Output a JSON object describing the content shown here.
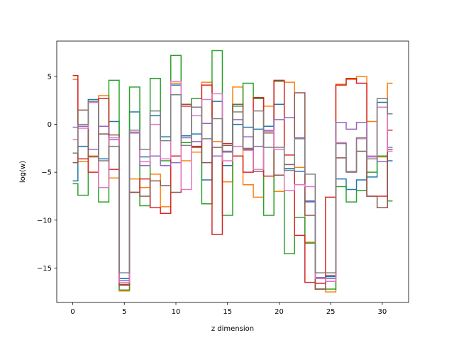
{
  "chart_data": {
    "type": "line",
    "drawstyle": "steps-mid",
    "title": "",
    "xlabel": "z dimension",
    "ylabel": "log(w)",
    "xlim": [
      -1.55,
      32.55
    ],
    "ylim": [
      -18.6,
      8.7
    ],
    "xticks": [
      0,
      5,
      10,
      15,
      20,
      25,
      30
    ],
    "xtick_labels": [
      "0",
      "5",
      "10",
      "15",
      "20",
      "25",
      "30"
    ],
    "yticks": [
      5,
      0,
      -5,
      -10,
      -15
    ],
    "ytick_labels": [
      "5",
      "0",
      "−5",
      "−10",
      "−15"
    ],
    "grid": false,
    "legend": "none",
    "x": [
      0,
      1,
      2,
      3,
      4,
      5,
      6,
      7,
      8,
      9,
      10,
      11,
      12,
      13,
      14,
      15,
      16,
      17,
      18,
      19,
      20,
      21,
      22,
      23,
      24,
      25,
      26,
      27,
      28,
      29,
      30,
      31
    ],
    "series": [
      {
        "color": "#1f77b4",
        "values": [
          -5.9,
          -2.3,
          2.6,
          -3.6,
          0.3,
          -16.1,
          1.3,
          -3.4,
          0.9,
          -1.3,
          4.1,
          -1.2,
          -1.0,
          -5.8,
          2.4,
          -4.3,
          0.0,
          -0.3,
          -0.5,
          -0.2,
          2.1,
          -4.6,
          -4.9,
          -8.0,
          -16.0,
          -15.9,
          -5.7,
          -6.8,
          -5.8,
          -5.5,
          2.3,
          -3.8
        ]
      },
      {
        "color": "#ff7f0e",
        "values": [
          4.7,
          -3.9,
          -3.3,
          3.0,
          -5.6,
          -17.4,
          -5.7,
          -6.6,
          -5.2,
          -8.6,
          4.3,
          -3.8,
          -2.9,
          4.4,
          -1.8,
          -6.0,
          3.9,
          -6.3,
          -7.6,
          1.9,
          -7.0,
          4.4,
          -4.5,
          -12.3,
          -17.2,
          -17.5,
          4.2,
          4.7,
          5.0,
          0.3,
          -3.4,
          4.3
        ]
      },
      {
        "color": "#2ca02c",
        "values": [
          -6.2,
          -7.4,
          2.3,
          -8.1,
          4.6,
          -17.3,
          3.9,
          -8.5,
          4.8,
          -3.8,
          7.2,
          -1.9,
          2.7,
          -8.3,
          7.7,
          -9.5,
          1.9,
          4.3,
          2.7,
          -9.5,
          4.5,
          -13.5,
          -9.7,
          -12.4,
          -17.2,
          -17.2,
          -6.5,
          -8.1,
          -6.9,
          -5.0,
          -3.3,
          -8.0
        ]
      },
      {
        "color": "#d62728",
        "values": [
          5.1,
          -3.6,
          -5.0,
          2.7,
          -4.7,
          -16.8,
          -7.1,
          -5.7,
          -8.7,
          -9.3,
          -3.3,
          1.9,
          -2.3,
          4.1,
          -11.5,
          -2.0,
          -3.3,
          -5.0,
          2.8,
          -5.4,
          4.6,
          -3.2,
          -11.6,
          -16.5,
          -16.6,
          -7.6,
          4.1,
          4.8,
          4.3,
          -7.5,
          -7.5,
          -0.6
        ]
      },
      {
        "color": "#9467bd",
        "values": [
          -0.3,
          -0.2,
          -2.6,
          -0.2,
          -1.6,
          -16.3,
          -0.9,
          -4.3,
          -3.3,
          -4.3,
          -4.0,
          -1.4,
          -1.8,
          0.1,
          -3.3,
          -2.8,
          0.5,
          -1.3,
          -2.3,
          -0.7,
          0.5,
          0.7,
          -1.4,
          -8.1,
          -16.0,
          -16.1,
          0.2,
          -0.5,
          0.2,
          -3.4,
          -3.9,
          -2.4
        ]
      },
      {
        "color": "#8c564b",
        "values": [
          -4.0,
          1.5,
          -3.4,
          -1.0,
          -1.1,
          -16.7,
          -7.1,
          -7.5,
          -5.9,
          -6.4,
          -7.1,
          2.1,
          -2.4,
          -4.0,
          -2.4,
          -2.2,
          2.1,
          -2.6,
          -4.9,
          -0.9,
          -5.3,
          -4.2,
          3.3,
          -9.5,
          -17.2,
          -15.8,
          -3.5,
          -4.9,
          -2.8,
          -7.5,
          -8.7,
          -2.6
        ]
      },
      {
        "color": "#e377c2",
        "values": [
          -1.6,
          -0.4,
          2.3,
          -6.6,
          -1.4,
          -16.5,
          -0.8,
          -3.9,
          0.0,
          -3.6,
          4.5,
          -6.8,
          0.9,
          2.6,
          3.2,
          -3.8,
          -2.3,
          -2.7,
          -4.7,
          -0.6,
          -2.6,
          -6.9,
          -6.3,
          -6.5,
          -16.1,
          -16.4,
          -1.9,
          -4.9,
          -1.5,
          -3.3,
          1.8,
          -2.8
        ]
      },
      {
        "color": "#7f7f7f",
        "values": [
          -3.0,
          0.0,
          2.4,
          -3.8,
          -2.3,
          -15.5,
          -0.6,
          -2.6,
          1.4,
          -1.7,
          3.1,
          -2.2,
          1.8,
          -1.5,
          0.6,
          -2.9,
          1.3,
          -2.5,
          1.4,
          -2.4,
          -2.4,
          -4.8,
          -1.5,
          -5.2,
          -15.5,
          -15.5,
          -2.0,
          -5.0,
          -1.4,
          -3.6,
          2.7,
          1.1
        ]
      }
    ]
  }
}
